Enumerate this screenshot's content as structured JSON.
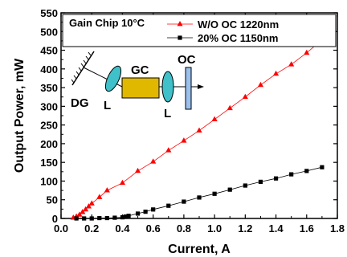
{
  "chart_data": {
    "type": "line",
    "xlabel": "Current, A",
    "ylabel": "Output Power, mW",
    "xlim": [
      0.0,
      1.8
    ],
    "ylim": [
      0,
      550
    ],
    "x_ticks": [
      "0.0",
      "0.2",
      "0.4",
      "0.6",
      "0.8",
      "1.0",
      "1.2",
      "1.4",
      "1.6",
      "1.8"
    ],
    "y_ticks": [
      "0",
      "50",
      "100",
      "150",
      "200",
      "250",
      "300",
      "350",
      "400",
      "450",
      "500",
      "550"
    ],
    "grid": false,
    "legend_position": "top-right",
    "annotation": "Gain Chip 10°C",
    "series": [
      {
        "name": "W/O OC 1220nm",
        "color": "#ff0000",
        "marker": "triangle",
        "x": [
          0.08,
          0.1,
          0.12,
          0.14,
          0.16,
          0.18,
          0.2,
          0.25,
          0.3,
          0.4,
          0.5,
          0.6,
          0.7,
          0.8,
          0.9,
          1.0,
          1.1,
          1.2,
          1.3,
          1.4,
          1.5,
          1.6,
          1.7
        ],
        "y": [
          2,
          5,
          10,
          17,
          24,
          32,
          40,
          57,
          75,
          95,
          127,
          152,
          182,
          208,
          235,
          265,
          295,
          325,
          357,
          387,
          412,
          443,
          478
        ]
      },
      {
        "name": "20% OC 1150nm",
        "color": "#000000",
        "marker": "square",
        "x": [
          0.1,
          0.15,
          0.2,
          0.25,
          0.3,
          0.35,
          0.4,
          0.42,
          0.44,
          0.5,
          0.55,
          0.6,
          0.7,
          0.8,
          0.9,
          1.0,
          1.1,
          1.2,
          1.3,
          1.4,
          1.5,
          1.6,
          1.7
        ],
        "y": [
          0,
          0,
          0,
          1,
          1,
          2,
          3,
          5,
          7,
          13,
          18,
          24,
          34,
          45,
          56,
          66,
          77,
          88,
          98,
          107,
          118,
          127,
          137
        ]
      }
    ]
  },
  "inset": {
    "labels": {
      "dg": "DG",
      "l1": "L",
      "gc": "GC",
      "l2": "L",
      "oc": "OC"
    },
    "colors": {
      "lens": "#40c0c8",
      "gain_chip": "#e0b800",
      "output_coupler": "#9cc0ec"
    }
  }
}
